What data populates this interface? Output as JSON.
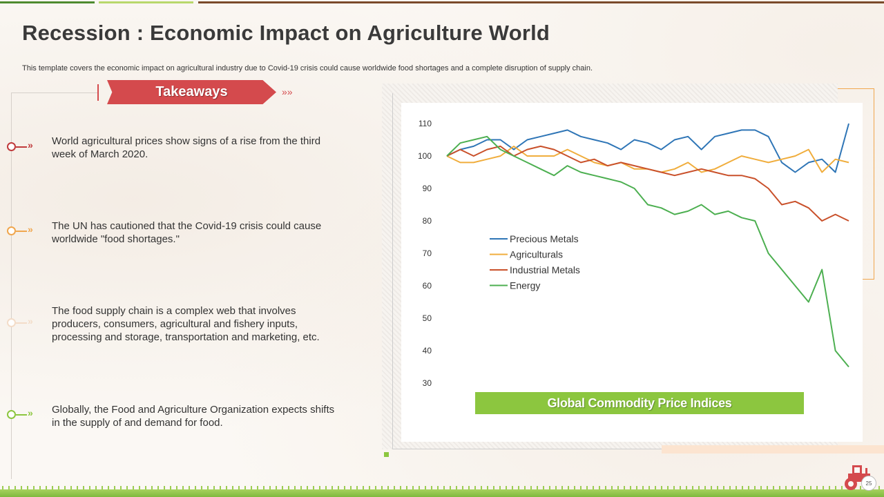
{
  "slide": {
    "title": "Recession : Economic Impact on Agriculture World",
    "subtitle": "This template covers the economic impact on agricultural industry due to Covid-19 crisis could cause worldwide food shortages and a complete disruption of supply chain.",
    "page_number": "25"
  },
  "takeaways": {
    "label": "Takeaways",
    "items": [
      {
        "text": "World agricultural prices show signs of a rise from the third week of March 2020.",
        "color": "#c0393b"
      },
      {
        "text": "The UN has cautioned that the Covid-19 crisis could cause worldwide \"food shortages.\"",
        "color": "#f0a64d"
      },
      {
        "text": "The food supply chain is a complex web that involves producers, consumers, agricultural and fishery inputs, processing and storage, transportation and marketing, etc.",
        "color": "#f3dcc8"
      },
      {
        "text": "Globally, the Food and Agriculture Organization expects shifts in the supply of and demand for food.",
        "color": "#8cc63f"
      }
    ]
  },
  "colors": {
    "accent_red": "#d44a4d",
    "accent_green": "#8cc63f",
    "accent_orange": "#f0a64d"
  },
  "chart_data": {
    "type": "line",
    "title": "Global Commodity Price Indices",
    "xlabel": "",
    "ylabel": "",
    "ylim": [
      30,
      110
    ],
    "yticks": [
      30,
      40,
      50,
      60,
      70,
      80,
      90,
      100,
      110
    ],
    "grid": false,
    "legend_position": "center-left",
    "x": [
      1,
      2,
      3,
      4,
      5,
      6,
      7,
      8,
      9,
      10,
      11,
      12,
      13,
      14,
      15,
      16,
      17,
      18,
      19,
      20,
      21,
      22,
      23,
      24,
      25,
      26,
      27,
      28,
      29,
      30,
      31
    ],
    "series": [
      {
        "name": "Precious Metals",
        "color": "#2e75b6",
        "values": [
          100,
          102,
          103,
          105,
          105,
          102,
          105,
          106,
          107,
          108,
          106,
          105,
          104,
          102,
          105,
          104,
          102,
          105,
          106,
          102,
          106,
          107,
          108,
          108,
          106,
          98,
          95,
          98,
          99,
          95,
          110
        ]
      },
      {
        "name": "Agriculturals",
        "color": "#f0ad3c",
        "values": [
          100,
          98,
          98,
          99,
          100,
          103,
          100,
          100,
          100,
          102,
          100,
          98,
          97,
          98,
          96,
          96,
          95,
          96,
          98,
          95,
          96,
          98,
          100,
          99,
          98,
          99,
          100,
          102,
          95,
          99,
          98
        ]
      },
      {
        "name": "Industrial Metals",
        "color": "#c9502a",
        "values": [
          100,
          102,
          100,
          102,
          103,
          100,
          102,
          103,
          102,
          100,
          98,
          99,
          97,
          98,
          97,
          96,
          95,
          94,
          95,
          96,
          95,
          94,
          94,
          93,
          90,
          85,
          86,
          84,
          80,
          82,
          80
        ]
      },
      {
        "name": "Energy",
        "color": "#4caf50",
        "values": [
          100,
          104,
          105,
          106,
          102,
          100,
          98,
          96,
          94,
          97,
          95,
          94,
          93,
          92,
          90,
          85,
          84,
          82,
          83,
          85,
          82,
          83,
          81,
          80,
          70,
          65,
          60,
          55,
          65,
          40,
          35
        ]
      }
    ]
  }
}
